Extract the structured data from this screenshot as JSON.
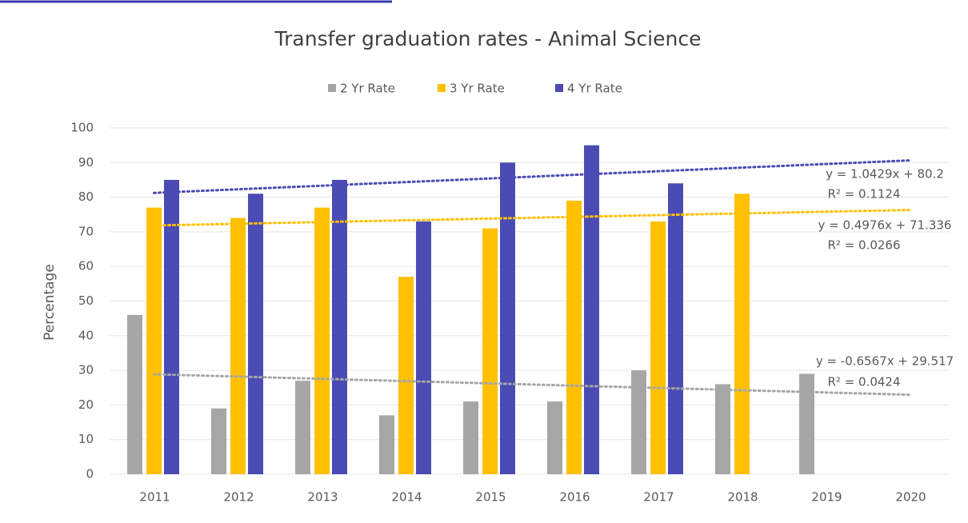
{
  "chart_data": {
    "type": "bar",
    "title": "Transfer graduation rates - Animal Science",
    "y_label": "Percentage",
    "categories": [
      "2011",
      "2012",
      "2013",
      "2014",
      "2015",
      "2016",
      "2017",
      "2018",
      "2019",
      "2020"
    ],
    "series": [
      {
        "name": "2 Yr Rate",
        "color": "#a6a6a6",
        "values": [
          46,
          19,
          27,
          17,
          21,
          21,
          30,
          26,
          29,
          null
        ]
      },
      {
        "name": "3 Yr Rate",
        "color": "#ffc000",
        "values": [
          77,
          74,
          77,
          57,
          71,
          79,
          73,
          81,
          null,
          null
        ]
      },
      {
        "name": "4 Yr Rate",
        "color": "#4b4bb4",
        "values": [
          85,
          81,
          85,
          73,
          90,
          95,
          84,
          null,
          null,
          null
        ]
      }
    ],
    "trendlines": [
      {
        "series": 0,
        "slope": -0.6567,
        "intercept": 29.517,
        "label": "y = -0.6567x + 29.517",
        "r2_label": "R² = 0.0424"
      },
      {
        "series": 1,
        "slope": 0.4976,
        "intercept": 71.336,
        "label": "y = 0.4976x + 71.336",
        "r2_label": "R² = 0.0266"
      },
      {
        "series": 2,
        "slope": 1.0429,
        "intercept": 80.2,
        "label": "y = 1.0429x + 80.2",
        "r2_label": "R² = 0.1124"
      }
    ],
    "ylim": [
      0,
      100
    ],
    "yticks": [
      0,
      10,
      20,
      30,
      40,
      50,
      60,
      70,
      80,
      90,
      100
    ],
    "grid": true,
    "legend": "top"
  }
}
